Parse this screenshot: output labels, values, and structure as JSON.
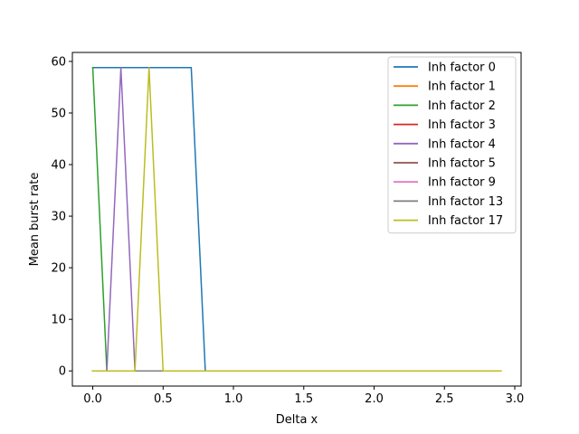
{
  "chart_data": {
    "type": "line",
    "xlabel": "Delta x",
    "ylabel": "Mean burst rate",
    "xlim": [
      -0.145,
      3.045
    ],
    "ylim": [
      -2.94,
      61.74
    ],
    "xticks": [
      0.0,
      0.5,
      1.0,
      1.5,
      2.0,
      2.5,
      3.0
    ],
    "xtick_labels": [
      "0.0",
      "0.5",
      "1.0",
      "1.5",
      "2.0",
      "2.5",
      "3.0"
    ],
    "yticks": [
      0,
      10,
      20,
      30,
      40,
      50,
      60
    ],
    "ytick_labels": [
      "0",
      "10",
      "20",
      "30",
      "40",
      "50",
      "60"
    ],
    "grid": false,
    "legend_position": "top-right",
    "series": [
      {
        "name": "Inh factor 0",
        "color": "#1f77b4",
        "x": [
          0.0,
          0.1,
          0.2,
          0.3,
          0.4,
          0.5,
          0.6,
          0.7,
          0.8,
          0.9,
          1.0,
          1.5,
          2.0,
          2.5,
          2.9
        ],
        "y": [
          58.8,
          58.8,
          58.8,
          58.8,
          58.8,
          58.8,
          58.8,
          58.8,
          0,
          0,
          0,
          0,
          0,
          0,
          0
        ]
      },
      {
        "name": "Inh factor 1",
        "color": "#ff7f0e",
        "x": [
          0.0,
          0.1,
          0.2,
          0.3,
          0.4,
          0.5,
          0.6,
          1.0,
          1.5,
          2.0,
          2.5,
          2.9
        ],
        "y": [
          0,
          0,
          0,
          0,
          0,
          0,
          0,
          0,
          0,
          0,
          0,
          0
        ]
      },
      {
        "name": "Inh factor 2",
        "color": "#2ca02c",
        "x": [
          0.0,
          0.1,
          0.2,
          0.3,
          0.4,
          0.5,
          1.0,
          1.5,
          2.0,
          2.5,
          2.9
        ],
        "y": [
          58.8,
          0,
          0,
          0,
          0,
          0,
          0,
          0,
          0,
          0,
          0
        ]
      },
      {
        "name": "Inh factor 3",
        "color": "#d62728",
        "x": [
          0.0,
          0.1,
          0.2,
          0.3,
          0.4,
          0.5,
          1.0,
          1.5,
          2.0,
          2.5,
          2.9
        ],
        "y": [
          0,
          0,
          0,
          0,
          0,
          0,
          0,
          0,
          0,
          0,
          0
        ]
      },
      {
        "name": "Inh factor 4",
        "color": "#9467bd",
        "x": [
          0.0,
          0.1,
          0.2,
          0.3,
          0.4,
          0.5,
          1.0,
          1.5,
          2.0,
          2.5,
          2.9
        ],
        "y": [
          0,
          0,
          58.8,
          0,
          0,
          0,
          0,
          0,
          0,
          0,
          0
        ]
      },
      {
        "name": "Inh factor 5",
        "color": "#8c564b",
        "x": [
          0.0,
          0.1,
          0.2,
          0.3,
          0.4,
          0.5,
          1.0,
          1.5,
          2.0,
          2.5,
          2.9
        ],
        "y": [
          0,
          0,
          0,
          0,
          0,
          0,
          0,
          0,
          0,
          0,
          0
        ]
      },
      {
        "name": "Inh factor 9",
        "color": "#e377c2",
        "x": [
          0.0,
          0.1,
          0.2,
          0.3,
          0.4,
          0.5,
          1.0,
          1.5,
          2.0,
          2.5,
          2.9
        ],
        "y": [
          0,
          0,
          0,
          0,
          0,
          0,
          0,
          0,
          0,
          0,
          0
        ]
      },
      {
        "name": "Inh factor 13",
        "color": "#7f7f7f",
        "x": [
          0.0,
          0.1,
          0.2,
          0.3,
          0.4,
          0.5,
          1.0,
          1.5,
          2.0,
          2.5,
          2.9
        ],
        "y": [
          0,
          0,
          0,
          0,
          0,
          0,
          0,
          0,
          0,
          0,
          0
        ]
      },
      {
        "name": "Inh factor 17",
        "color": "#bcbd22",
        "x": [
          0.0,
          0.1,
          0.2,
          0.3,
          0.4,
          0.5,
          1.0,
          1.5,
          2.0,
          2.5,
          2.9
        ],
        "y": [
          0,
          0,
          0,
          0,
          58.8,
          0,
          0,
          0,
          0,
          0,
          0
        ]
      }
    ]
  }
}
